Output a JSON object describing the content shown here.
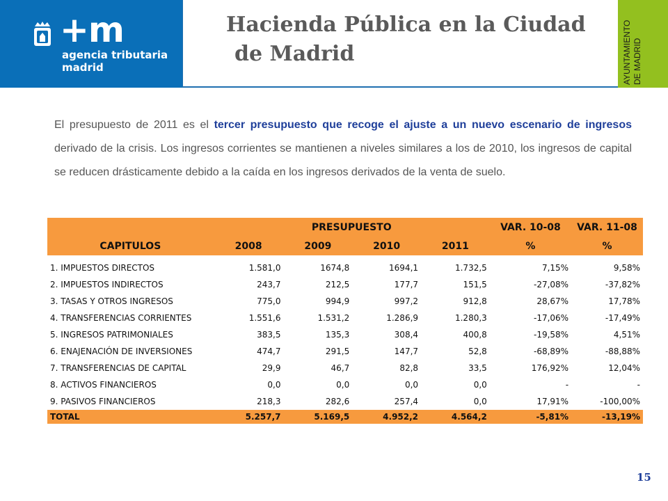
{
  "header": {
    "logo_mark": "+m",
    "logo_line1": "agencia tributaria",
    "logo_line2": "madrid",
    "title_line1": "Hacienda Pública en la Ciudad",
    "title_line2": "de Madrid",
    "side_label": "AYUNTAMIENTO\nDE MADRID"
  },
  "paragraph": {
    "p1": "El presupuesto de 2011 es el ",
    "h1": "tercer presupuesto que recoge el ajuste a un nuevo escenario de ingresos",
    "p2": " derivado de la crisis.  Los ingresos corrientes se mantienen a niveles similares a los de 2010, los ingresos de capital se reducen drásticamente debido a la caída en los ingresos derivados de la venta de suelo."
  },
  "table": {
    "group_header": "PRESUPUESTO",
    "var1_header": "VAR. 10-08",
    "var2_header": "VAR. 11-08",
    "columns": [
      "CAPITULOS",
      "2008",
      "2009",
      "2010",
      "2011",
      "%",
      "%"
    ],
    "rows": [
      [
        "1. IMPUESTOS DIRECTOS",
        "1.581,0",
        "1674,8",
        "1694,1",
        "1.732,5",
        "7,15%",
        "9,58%"
      ],
      [
        "2. IMPUESTOS INDIRECTOS",
        "243,7",
        "212,5",
        "177,7",
        "151,5",
        "-27,08%",
        "-37,82%"
      ],
      [
        "3. TASAS Y OTROS INGRESOS",
        "775,0",
        "994,9",
        "997,2",
        "912,8",
        "28,67%",
        "17,78%"
      ],
      [
        "4. TRANSFERENCIAS  CORRIENTES",
        "1.551,6",
        "1.531,2",
        "1.286,9",
        "1.280,3",
        "-17,06%",
        "-17,49%"
      ],
      [
        "5. INGRESOS PATRIMONIALES",
        "383,5",
        "135,3",
        "308,4",
        "400,8",
        "-19,58%",
        "4,51%"
      ],
      [
        "6. ENAJENACIÓN DE INVERSIONES",
        "474,7",
        "291,5",
        "147,7",
        "52,8",
        "-68,89%",
        "-88,88%"
      ],
      [
        "7. TRANSFERENCIAS DE CAPITAL",
        "29,9",
        "46,7",
        "82,8",
        "33,5",
        "176,92%",
        "12,04%"
      ],
      [
        "8. ACTIVOS FINANCIEROS",
        "0,0",
        "0,0",
        "0,0",
        "0,0",
        "-",
        "-"
      ],
      [
        "9. PASIVOS FINANCIEROS",
        "218,3",
        "282,6",
        "257,4",
        "0,0",
        "17,91%",
        "-100,00%"
      ]
    ],
    "total": [
      "TOTAL",
      "5.257,7",
      "5.169,5",
      "4.952,2",
      "4.564,2",
      "-5,81%",
      "-13,19%"
    ]
  },
  "page_number": "15",
  "colors": {
    "logo_blue": "#0a6fb8",
    "ayto_green": "#93c01f",
    "table_orange": "#f79a3e",
    "highlight_blue": "#1f3f9a"
  }
}
